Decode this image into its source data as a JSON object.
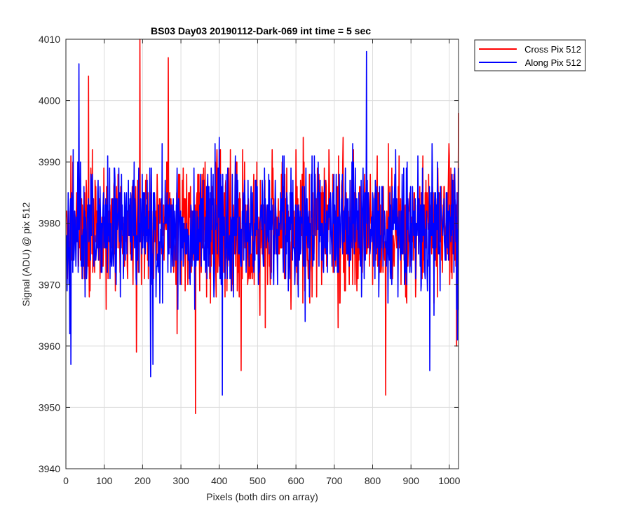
{
  "chart_data": {
    "type": "line",
    "title": "BS03 Day03 20190112-Dark-069 int time = 5 sec",
    "xlabel": "Pixels (both dirs on array)",
    "ylabel": "Signal (ADU) @ pix 512",
    "xlim": [
      0,
      1024
    ],
    "ylim": [
      3940,
      4010
    ],
    "xticks": [
      0,
      100,
      200,
      300,
      400,
      500,
      600,
      700,
      800,
      900,
      1000
    ],
    "yticks": [
      3940,
      3950,
      3960,
      3970,
      3980,
      3990,
      4000,
      4010
    ],
    "grid": true,
    "legend_position": "outside-top-right",
    "n_points": 1024,
    "noise_model": "white noise about ~3979 ADU, sd ~5 ADU, values integer",
    "series": [
      {
        "name": "Cross Pix 512",
        "color": "#ff0000",
        "mean": 3979,
        "std": 5.5,
        "seed": 17,
        "notable_points": [
          {
            "x": 58,
            "y": 4004
          },
          {
            "x": 183,
            "y": 3959
          },
          {
            "x": 192,
            "y": 4010
          },
          {
            "x": 266,
            "y": 4007
          },
          {
            "x": 337,
            "y": 3949
          },
          {
            "x": 456,
            "y": 3956
          },
          {
            "x": 833,
            "y": 3952
          },
          {
            "x": 1018,
            "y": 3960
          },
          {
            "x": 1023,
            "y": 3998
          }
        ]
      },
      {
        "name": "Along Pix 512",
        "color": "#0000ff",
        "mean": 3979,
        "std": 5.2,
        "seed": 42,
        "notable_points": [
          {
            "x": 12,
            "y": 3957
          },
          {
            "x": 33,
            "y": 4006
          },
          {
            "x": 220,
            "y": 3955
          },
          {
            "x": 226,
            "y": 3957
          },
          {
            "x": 407,
            "y": 3952
          },
          {
            "x": 783,
            "y": 4008
          },
          {
            "x": 948,
            "y": 3956
          },
          {
            "x": 1020,
            "y": 3961
          }
        ]
      }
    ]
  }
}
